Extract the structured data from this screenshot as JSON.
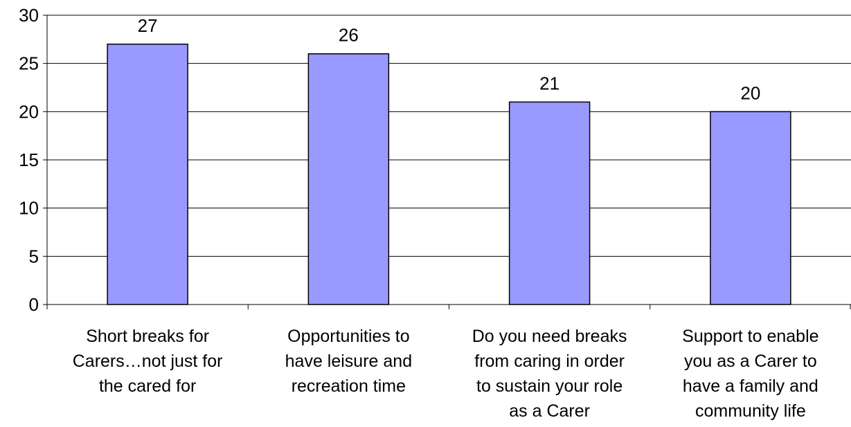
{
  "chart_data": {
    "type": "bar",
    "categories": [
      [
        "Short breaks for",
        "Carers…not just for",
        "the cared for"
      ],
      [
        "Opportunities to",
        "have leisure and",
        "recreation time"
      ],
      [
        "Do you need breaks",
        "from caring in order",
        "to sustain your role",
        "as a Carer"
      ],
      [
        "Support to enable",
        "you as a Carer to",
        "have a family and",
        "community life"
      ]
    ],
    "values": [
      27,
      26,
      21,
      20
    ],
    "data_labels": [
      "27",
      "26",
      "21",
      "20"
    ],
    "y_ticks": [
      "0",
      "5",
      "10",
      "15",
      "20",
      "25",
      "30"
    ],
    "ylim": [
      0,
      30
    ],
    "grid": true,
    "legend": "none",
    "bar_color": "#9999ff",
    "bar_stroke": "#000000",
    "grid_color": "#000000"
  }
}
